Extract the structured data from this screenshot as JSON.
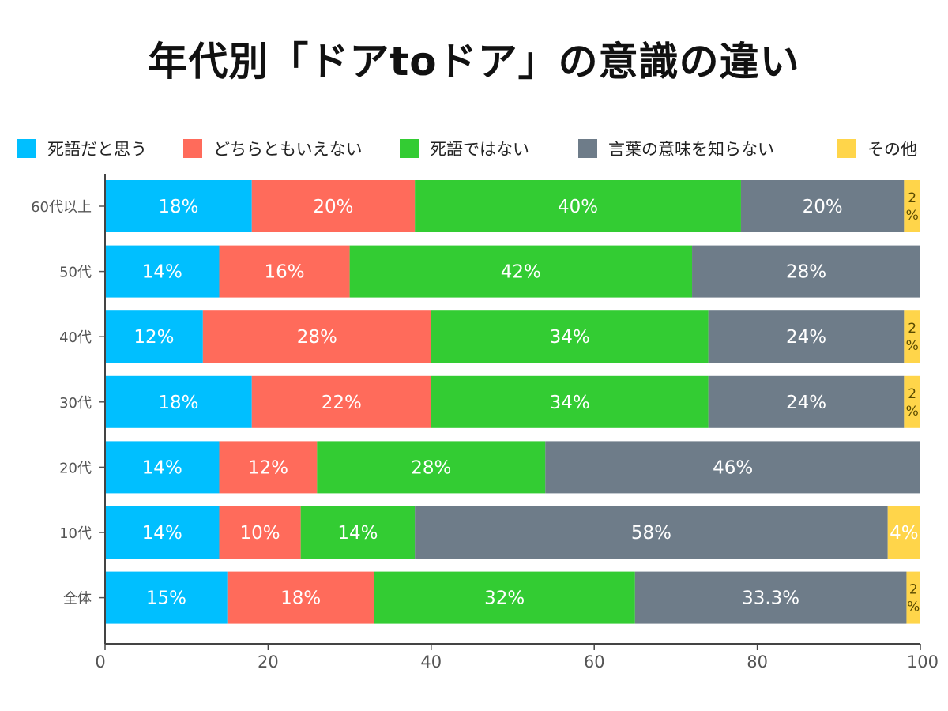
{
  "chart_data": {
    "type": "bar",
    "orientation": "horizontal",
    "stacked": true,
    "title": "年代別「ドアtoドア」の意識の違い",
    "categories": [
      "60代以上",
      "50代",
      "40代",
      "30代",
      "20代",
      "10代",
      "全体"
    ],
    "series": [
      {
        "name": "死語だと思う",
        "color": "#00BFFF",
        "values": [
          18,
          14,
          12,
          18,
          14,
          14,
          15
        ]
      },
      {
        "name": "どちらともいえない",
        "color": "#FF6B5B",
        "values": [
          20,
          16,
          28,
          22,
          12,
          10,
          18
        ]
      },
      {
        "name": "死語ではない",
        "color": "#33CC33",
        "values": [
          40,
          42,
          34,
          34,
          28,
          14,
          32
        ]
      },
      {
        "name": "言葉の意味を知らない",
        "color": "#6E7C89",
        "values": [
          20,
          28,
          24,
          24,
          46,
          58,
          33.3
        ]
      },
      {
        "name": "その他",
        "color": "#FFD54A",
        "values": [
          2,
          0,
          2,
          2,
          0,
          4,
          1.7
        ]
      }
    ],
    "data_labels": [
      [
        "18%",
        "14%",
        "12%",
        "18%",
        "14%",
        "14%",
        "15%"
      ],
      [
        "20%",
        "16%",
        "28%",
        "22%",
        "12%",
        "10%",
        "18%"
      ],
      [
        "40%",
        "42%",
        "34%",
        "34%",
        "28%",
        "14%",
        "32%"
      ],
      [
        "20%",
        "28%",
        "24%",
        "24%",
        "46%",
        "58%",
        "33.3%"
      ],
      [
        "2%",
        "",
        "2%",
        "2%",
        "",
        "4%",
        "2%"
      ]
    ],
    "xlim": [
      0,
      100
    ],
    "xticks": [
      0,
      20,
      40,
      60,
      80,
      100
    ],
    "legend_position": "top",
    "grid": false
  }
}
